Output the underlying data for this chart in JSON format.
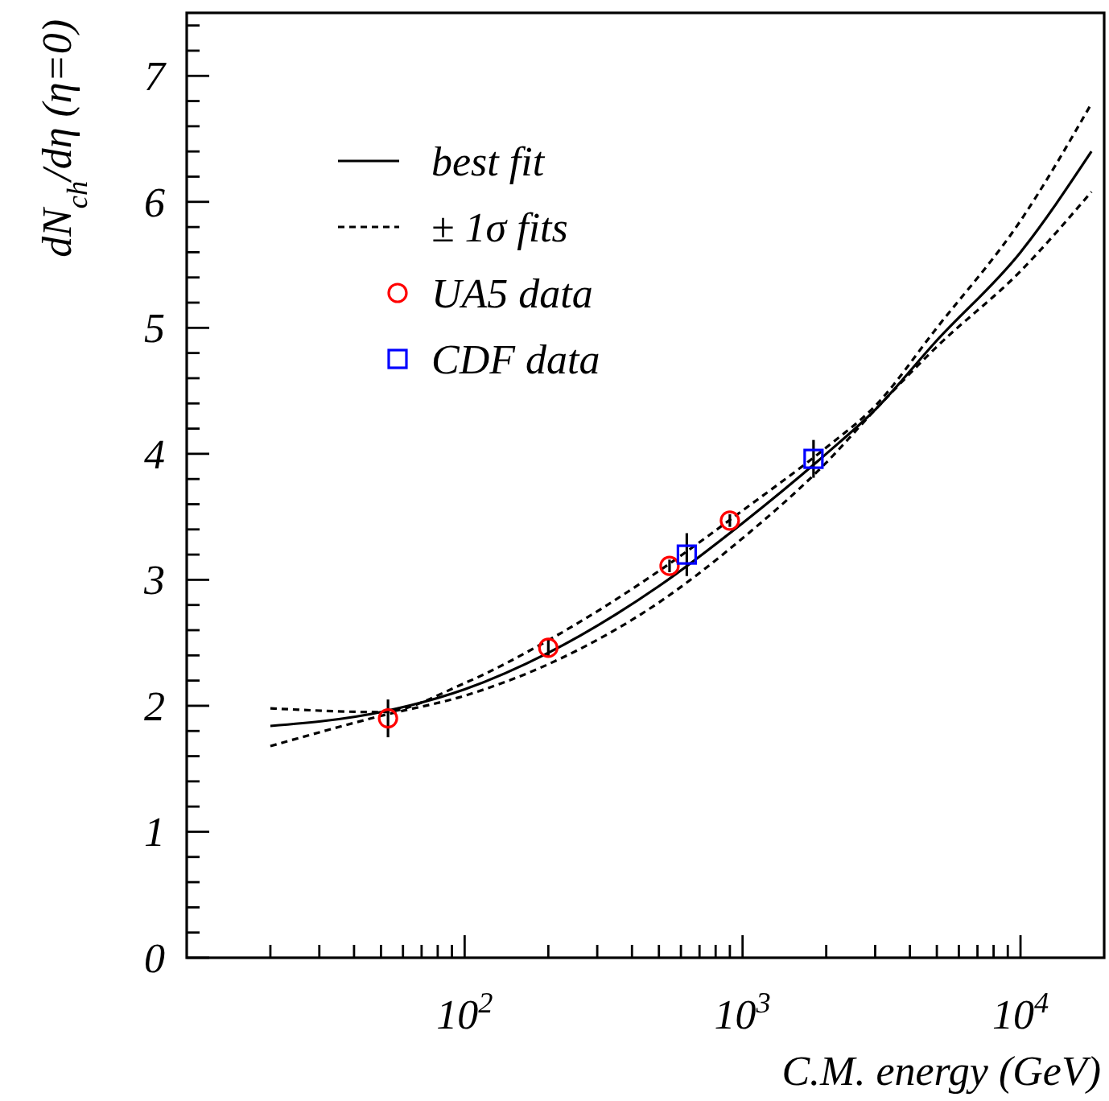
{
  "chart_data": {
    "type": "line",
    "xlabel": "C.M. energy (GeV)",
    "ylabel": "dN$_{ch}$/dη (η=0)",
    "log": "x",
    "xlim": [
      10,
      20000
    ],
    "ylim": [
      0,
      7.5
    ],
    "xticks": [
      {
        "value": 20,
        "label": null
      },
      {
        "value": 30,
        "label": null
      },
      {
        "value": 40,
        "label": null
      },
      {
        "value": 50,
        "label": null
      },
      {
        "value": 60,
        "label": null
      },
      {
        "value": 70,
        "label": null
      },
      {
        "value": 80,
        "label": null
      },
      {
        "value": 90,
        "label": null
      },
      {
        "value": 100,
        "label": "10$^{2}$"
      },
      {
        "value": 200,
        "label": null
      },
      {
        "value": 300,
        "label": null
      },
      {
        "value": 400,
        "label": null
      },
      {
        "value": 500,
        "label": null
      },
      {
        "value": 600,
        "label": null
      },
      {
        "value": 700,
        "label": null
      },
      {
        "value": 800,
        "label": null
      },
      {
        "value": 900,
        "label": null
      },
      {
        "value": 1000,
        "label": "10$^{3}$"
      },
      {
        "value": 2000,
        "label": null
      },
      {
        "value": 3000,
        "label": null
      },
      {
        "value": 4000,
        "label": null
      },
      {
        "value": 5000,
        "label": null
      },
      {
        "value": 6000,
        "label": null
      },
      {
        "value": 7000,
        "label": null
      },
      {
        "value": 8000,
        "label": null
      },
      {
        "value": 9000,
        "label": null
      },
      {
        "value": 10000,
        "label": "10$^{4}$"
      }
    ],
    "yticks": [
      0,
      {
        "value": 0.2,
        "label": null
      },
      {
        "value": 0.4,
        "label": null
      },
      {
        "value": 0.6,
        "label": null
      },
      {
        "value": 0.8,
        "label": null
      },
      1,
      {
        "value": 1.2,
        "label": null
      },
      {
        "value": 1.4,
        "label": null
      },
      {
        "value": 1.6,
        "label": null
      },
      {
        "value": 1.8,
        "label": null
      },
      2,
      {
        "value": 2.2,
        "label": null
      },
      {
        "value": 2.4,
        "label": null
      },
      {
        "value": 2.6,
        "label": null
      },
      {
        "value": 2.8,
        "label": null
      },
      3,
      {
        "value": 3.2,
        "label": null
      },
      {
        "value": 3.4,
        "label": null
      },
      {
        "value": 3.6,
        "label": null
      },
      {
        "value": 3.8,
        "label": null
      },
      4,
      {
        "value": 4.2,
        "label": null
      },
      {
        "value": 4.4,
        "label": null
      },
      {
        "value": 4.6,
        "label": null
      },
      {
        "value": 4.8,
        "label": null
      },
      5,
      {
        "value": 5.2,
        "label": null
      },
      {
        "value": 5.4,
        "label": null
      },
      {
        "value": 5.6,
        "label": null
      },
      {
        "value": 5.8,
        "label": null
      },
      6,
      {
        "value": 6.2,
        "label": null
      },
      {
        "value": 6.4,
        "label": null
      },
      {
        "value": 6.6,
        "label": null
      },
      {
        "value": 6.8,
        "label": null
      },
      7,
      {
        "value": 7.2,
        "label": null
      },
      {
        "value": 7.4,
        "label": null
      }
    ],
    "grid": false,
    "legend": "top left",
    "series": [
      {
        "name": "best fit",
        "color": "#000000",
        "line_style": "solid",
        "marker": "none",
        "x": [
          20,
          50,
          100,
          200,
          500,
          1000,
          2000,
          3000,
          5000,
          10000,
          18000
        ],
        "values": [
          1.84,
          1.95,
          2.13,
          2.42,
          2.95,
          3.45,
          4.0,
          4.35,
          4.9,
          5.6,
          6.4
        ]
      },
      {
        "name": "± 1σ fits",
        "color": "#000000",
        "line_style": "dashed",
        "marker": "none",
        "x": [
          20,
          50,
          100,
          200,
          500,
          1000,
          2000,
          3000,
          5000,
          10000,
          18000
        ],
        "values": [
          1.98,
          1.95,
          2.18,
          2.52,
          3.07,
          3.55,
          4.05,
          4.38,
          5.0,
          5.85,
          6.78
        ]
      },
      {
        "color": "#000000",
        "line_style": "dashed",
        "marker": "none",
        "x": [
          20,
          50,
          100,
          200,
          500,
          1000,
          2000,
          3000,
          5000,
          10000,
          18000
        ],
        "values": [
          1.68,
          1.92,
          2.08,
          2.33,
          2.82,
          3.33,
          3.93,
          4.35,
          4.85,
          5.45,
          6.08
        ]
      },
      {
        "name": "UA5 data",
        "type": "scatter",
        "color": "#ff0000",
        "marker": "circle",
        "x": [
          53,
          200,
          546,
          900
        ],
        "values": [
          1.9,
          2.46,
          3.11,
          3.47
        ],
        "errors": [
          0.15,
          0.07,
          0.05,
          0.05
        ]
      },
      {
        "name": "CDF data",
        "type": "scatter",
        "color": "#0000ff",
        "marker": "square",
        "x": [
          630,
          1800
        ],
        "values": [
          3.2,
          3.96
        ],
        "errors": [
          0.17,
          0.15
        ]
      }
    ]
  }
}
